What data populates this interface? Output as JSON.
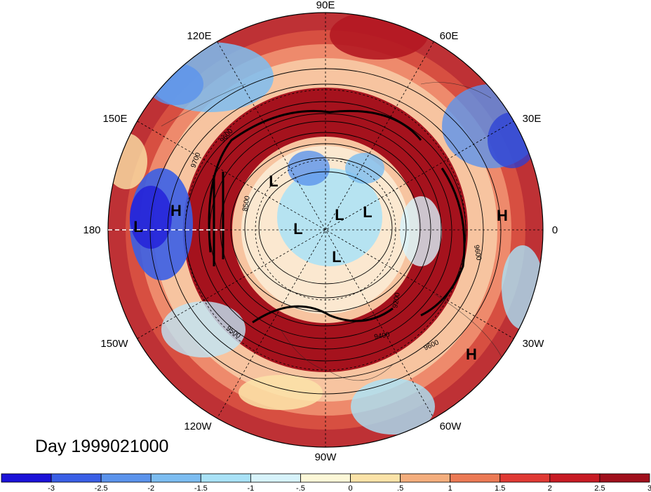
{
  "title": "Day 1999021000",
  "longitude_labels": [
    {
      "text": "90E"
    },
    {
      "text": "60E"
    },
    {
      "text": "30E"
    },
    {
      "text": "0"
    },
    {
      "text": "30W"
    },
    {
      "text": "60W"
    },
    {
      "text": "90W"
    },
    {
      "text": "120W"
    },
    {
      "text": "150W"
    },
    {
      "text": "180"
    },
    {
      "text": "150E"
    },
    {
      "text": "120E"
    }
  ],
  "pressure_centers": [
    {
      "text": "L"
    },
    {
      "text": "L"
    },
    {
      "text": "L"
    },
    {
      "text": "L"
    },
    {
      "text": "L"
    },
    {
      "text": "L"
    },
    {
      "text": "H"
    },
    {
      "text": "H"
    },
    {
      "text": "H"
    }
  ],
  "contour_labels": [
    "9700",
    "9600",
    "8500",
    "9500",
    "9400",
    "9600",
    "9600",
    "9200"
  ],
  "colorbar": {
    "ticks": [
      "-3",
      "-2.5",
      "-2",
      "-1.5",
      "-1",
      "-.5",
      "0",
      ".5",
      "1",
      "1.5",
      "2",
      "2.5",
      "3"
    ],
    "colors": [
      "#1b12d8",
      "#3a5fe6",
      "#5b93ec",
      "#7cbdf1",
      "#a9e2f7",
      "#d7f3fb",
      "#fdf8d8",
      "#fbe3a8",
      "#f4ae7d",
      "#ec7a55",
      "#e03a34",
      "#c81b24",
      "#a0101c"
    ]
  },
  "palette": {
    "deep_red": "#a0101c",
    "red": "#d7302c",
    "light_red": "#f08a64",
    "cream": "#fbecc4",
    "light_blue": "#bfe6f6",
    "blue": "#6aa6ee",
    "deep_blue": "#2a3fd6"
  }
}
